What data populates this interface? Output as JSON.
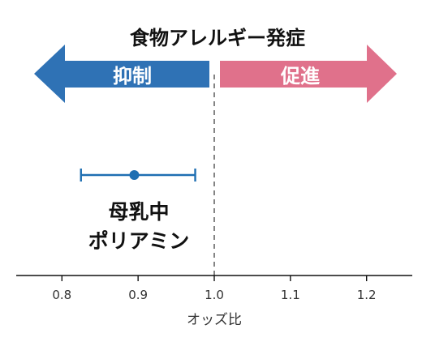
{
  "chart_data": {
    "type": "scatter",
    "title": "食物アレルギー発症",
    "arrows": {
      "left": {
        "label": "抑制",
        "color": "#2f72b5"
      },
      "right": {
        "label": "促進",
        "color": "#e0718b"
      }
    },
    "xlabel": "オッズ比",
    "xlim": [
      0.74,
      1.26
    ],
    "xticks": [
      0.8,
      0.9,
      1.0,
      1.1,
      1.2
    ],
    "xtick_labels": [
      "0.8",
      "0.9",
      "1.0",
      "1.1",
      "1.2"
    ],
    "reference_line": 1.0,
    "points": [
      {
        "label_lines": [
          "母乳中",
          "ポリアミン"
        ],
        "estimate": 0.895,
        "ci_low": 0.825,
        "ci_high": 0.975,
        "color": "#1f6fb2"
      }
    ],
    "grid": false
  }
}
